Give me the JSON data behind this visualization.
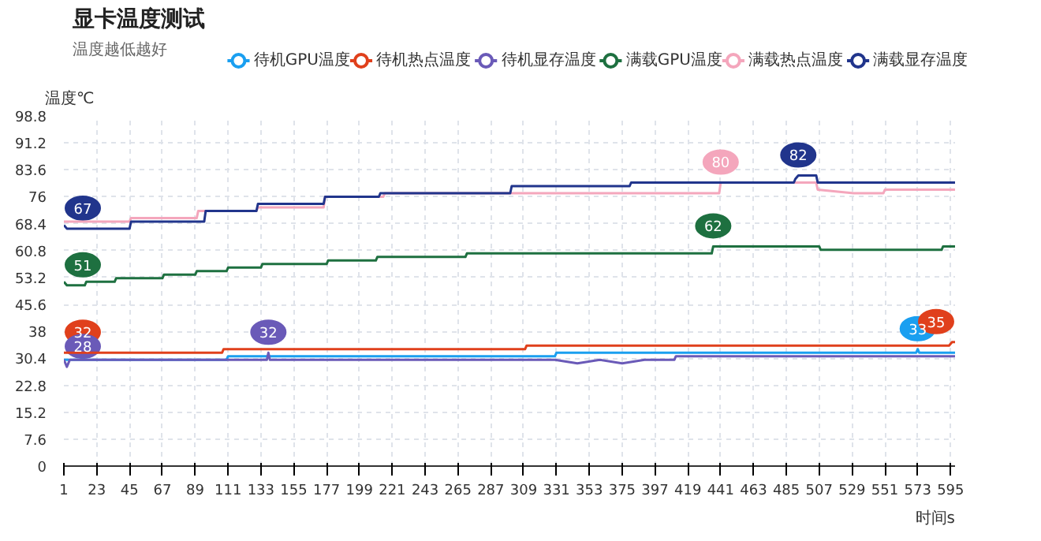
{
  "chart_data": {
    "type": "line",
    "title": "显卡温度测试",
    "subtitle": "温度越低越好",
    "xlabel": "时间s",
    "ylabel": "温度℃",
    "xlim": [
      1,
      598
    ],
    "xticks": [
      1,
      23,
      45,
      67,
      89,
      111,
      133,
      155,
      177,
      199,
      221,
      243,
      265,
      287,
      309,
      331,
      353,
      375,
      397,
      419,
      441,
      463,
      485,
      507,
      529,
      551,
      573,
      595
    ],
    "ylim": [
      0,
      98.8
    ],
    "yticks": [
      0,
      7.6,
      15.2,
      22.8,
      30.4,
      38,
      45.6,
      53.2,
      60.8,
      68.4,
      76,
      83.6,
      91.2,
      98.8
    ],
    "grid": true,
    "legend": "top right",
    "marker": "none",
    "line_style": "solid",
    "series": [
      {
        "name": "待机GPU温度",
        "color": "#1a9ff0",
        "x": [
          1,
          110,
          111,
          330,
          331,
          572,
          573,
          574,
          598
        ],
        "values": [
          30,
          30,
          31,
          31,
          32,
          32,
          33,
          32,
          32
        ]
      },
      {
        "name": "待机热点温度",
        "color": "#e0401c",
        "x": [
          1,
          107,
          108,
          310,
          311,
          594,
          596,
          598
        ],
        "values": [
          32,
          32,
          33,
          33,
          34,
          34,
          35,
          35
        ]
      },
      {
        "name": "待机显存温度",
        "color": "#6a5ab8",
        "x": [
          1,
          3,
          5,
          137,
          138,
          139,
          330,
          345,
          360,
          375,
          390,
          410,
          411,
          598
        ],
        "values": [
          30,
          28,
          30,
          30,
          32,
          30,
          30,
          29,
          30,
          29,
          30,
          30,
          31,
          31
        ]
      },
      {
        "name": "满载GPU温度",
        "color": "#1e7040",
        "x": [
          1,
          3,
          15,
          16,
          35,
          36,
          67,
          68,
          89,
          90,
          110,
          111,
          133,
          134,
          177,
          178,
          210,
          211,
          270,
          271,
          300,
          301,
          435,
          436,
          507,
          508,
          589,
          590,
          598
        ],
        "values": [
          52,
          51,
          51,
          52,
          52,
          53,
          53,
          54,
          54,
          55,
          55,
          56,
          56,
          57,
          57,
          58,
          58,
          59,
          59,
          60,
          60,
          60,
          60,
          62,
          62,
          61,
          61,
          62,
          62
        ]
      },
      {
        "name": "满载热点温度",
        "color": "#f4a6bc",
        "x": [
          1,
          3,
          45,
          46,
          90,
          91,
          130,
          131,
          175,
          176,
          215,
          216,
          440,
          441,
          505,
          506,
          530,
          550,
          551,
          598
        ],
        "values": [
          69,
          69,
          69,
          70,
          70,
          72,
          72,
          73,
          73,
          76,
          76,
          77,
          77,
          80,
          80,
          78,
          77,
          77,
          78,
          78
        ]
      },
      {
        "name": "满载显存温度",
        "color": "#21358c",
        "x": [
          1,
          3,
          45,
          46,
          95,
          96,
          130,
          131,
          175,
          176,
          212,
          213,
          300,
          301,
          380,
          381,
          490,
          491,
          493,
          505,
          506,
          598
        ],
        "values": [
          68,
          67,
          67,
          69,
          69,
          72,
          72,
          74,
          74,
          76,
          76,
          77,
          77,
          79,
          79,
          80,
          80,
          81,
          82,
          82,
          80,
          80
        ]
      }
    ],
    "annotations": [
      {
        "text": "33",
        "x": 573,
        "y": 33
      },
      {
        "text": "32",
        "x": 1,
        "y": 32
      },
      {
        "text": "35",
        "x": 596,
        "y": 35
      },
      {
        "text": "28",
        "x": 3,
        "y": 28
      },
      {
        "text": "32",
        "x": 138,
        "y": 32
      },
      {
        "text": "51",
        "x": 3,
        "y": 51
      },
      {
        "text": "62",
        "x": 436,
        "y": 62
      },
      {
        "text": "80",
        "x": 441,
        "y": 80
      },
      {
        "text": "67",
        "x": 3,
        "y": 67
      },
      {
        "text": "82",
        "x": 493,
        "y": 82
      }
    ]
  }
}
